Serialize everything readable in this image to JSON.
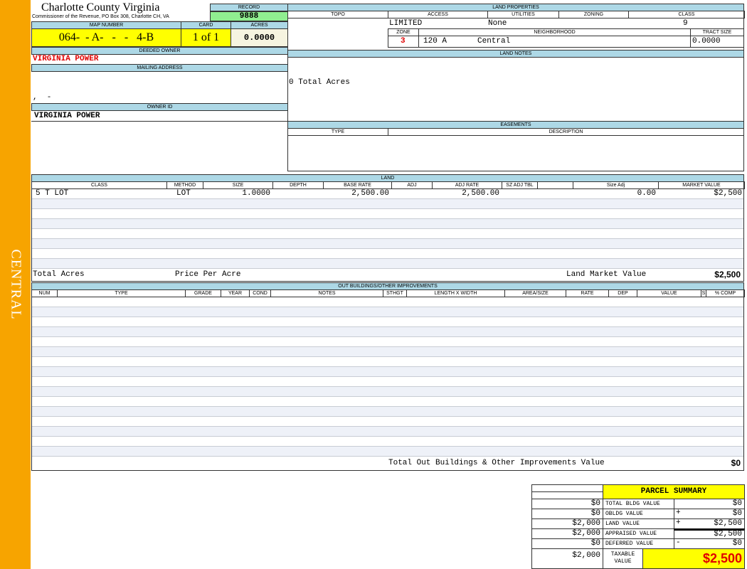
{
  "sidebar": {
    "label": "CENTRAL",
    "color": "#f7a400"
  },
  "header": {
    "title": "Charlotte County Virginia",
    "subtitle": "Commissioner of the Revenue, PO Box 308, Charlotte CH, VA",
    "record_label": "RECORD",
    "record_value": "9888",
    "map_number_label": "MAP NUMBER",
    "map_number": "064-  - A-   -   -   4-B",
    "card_label": "CARD",
    "card": "1 of 1",
    "acres_label": "ACRES",
    "acres": "0.0000"
  },
  "owner": {
    "deeded_label": "DEEDED OWNER",
    "deeded_owner": "VIRGINIA POWER",
    "mailing_label": "MAILING ADDRESS",
    "mailing_address": ",  -",
    "owner_id_label": "OWNER ID",
    "owner_id": "VIRGINIA POWER"
  },
  "land_properties": {
    "label": "LAND PROPERTIES",
    "columns": [
      "TOPO",
      "ACCESS",
      "UTILITIES",
      "ZONING",
      "CLASS"
    ],
    "access": "LIMITED",
    "utilities": "None",
    "class": "9",
    "zone_label": "ZONE",
    "neighborhood_label": "NEIGHBORHOOD",
    "tract_label": "TRACT SIZE",
    "zone": "3",
    "neighborhood_code": "120 A",
    "neighborhood": "Central",
    "tract_size": "0.0000"
  },
  "land_notes": {
    "label": "LAND NOTES",
    "text": "0 Total Acres"
  },
  "easements": {
    "label": "EASEMENTS",
    "columns": [
      "TYPE",
      "DESCRIPTION"
    ]
  },
  "land": {
    "label": "LAND",
    "columns": [
      "CLASS",
      "METHOD",
      "SIZE",
      "DEPTH",
      "BASE RATE",
      "ADJ",
      "ADJ RATE",
      "SZ ADJ TBL",
      "",
      "Size Adj",
      "MARKET VALUE"
    ],
    "rows": [
      [
        "5 T LOT",
        "LOT",
        "1.0000",
        "",
        "2,500.00",
        "",
        "2,500.00",
        "",
        "",
        "0.00",
        "$2,500"
      ]
    ],
    "total_acres_label": "Total Acres",
    "price_per_acre_label": "Price Per Acre",
    "market_value_label": "Land Market Value",
    "market_value": "$2,500"
  },
  "outbuildings": {
    "label": "OUT BUILDINGS/OTHER IMPROVEMENTS",
    "columns": [
      "NUM",
      "TYPE",
      "GRADE",
      "YEAR",
      "COND",
      "NOTES",
      "STHGT",
      "LENGTH X WIDTH",
      "AREA/SIZE",
      "RATE",
      "DEP",
      "VALUE",
      "S",
      "% COMP"
    ],
    "total_label": "Total Out Buildings & Other Improvements Value",
    "total": "$0"
  },
  "summary": {
    "title": "PARCEL SUMMARY",
    "rows": [
      {
        "prior": "$0",
        "label": "TOTAL BLDG VALUE",
        "op": "",
        "value": "$0"
      },
      {
        "prior": "$0",
        "label": "OBLDG VALUE",
        "op": "+",
        "value": "$0"
      },
      {
        "prior": "$2,000",
        "label": "LAND VALUE",
        "op": "+",
        "value": "$2,500"
      },
      {
        "prior": "$2,000",
        "label": "APPRAISED VALUE",
        "op": "",
        "value": "$2,500"
      },
      {
        "prior": "$0",
        "label": "DEFERRED VALUE",
        "op": "-",
        "value": "$0"
      }
    ],
    "taxable_prior": "$2,000",
    "taxable_label": "TAXABLE VALUE",
    "taxable_value": "$2,500"
  },
  "colors": {
    "header_blue": "#add8e6",
    "yellow": "#ffff00",
    "green": "#90ee90",
    "red": "#e00000"
  }
}
